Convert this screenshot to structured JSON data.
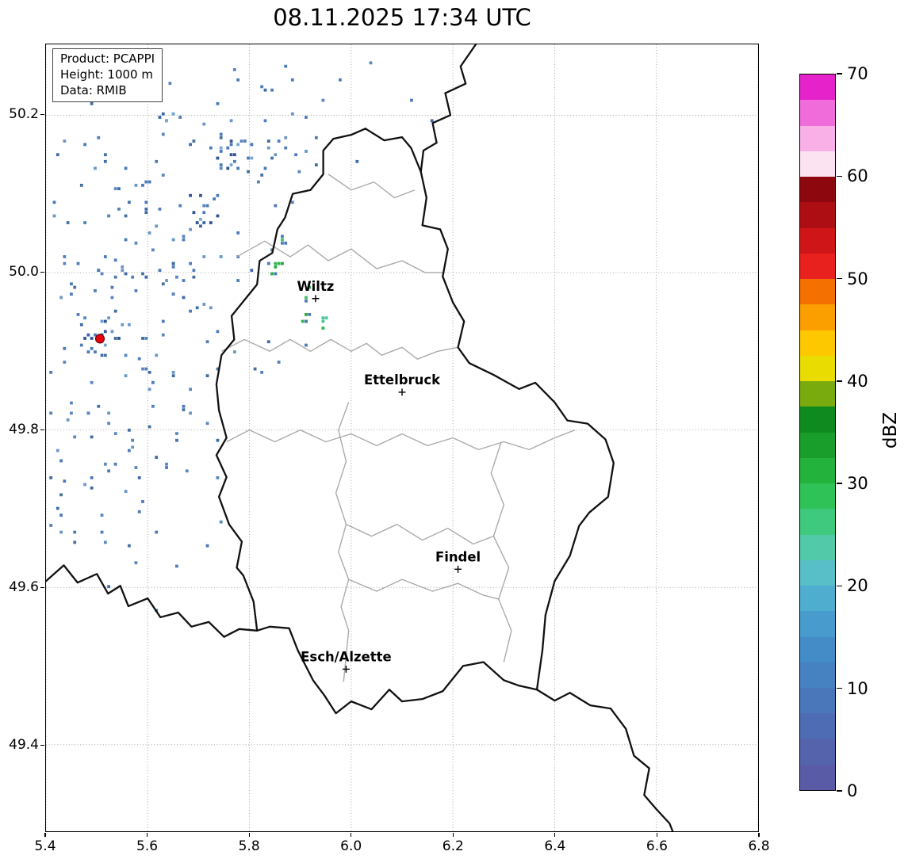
{
  "title": "08.11.2025 17:34 UTC",
  "info_box": {
    "lines": [
      "Product: PCAPPI",
      "Height: 1000 m",
      "Data: RMIB"
    ]
  },
  "colorbar": {
    "label": "dBZ",
    "min": 0,
    "max": 70,
    "ticks": [
      0,
      10,
      20,
      30,
      40,
      50,
      60,
      70
    ],
    "colors": [
      "#5a5ba6",
      "#5463ac",
      "#4e6cb3",
      "#4a76ba",
      "#4681c1",
      "#438cc8",
      "#479ccd",
      "#4fadd0",
      "#58bfc8",
      "#52c9a8",
      "#3fc97e",
      "#2fc256",
      "#23b23c",
      "#199e2b",
      "#0f8a1e",
      "#7aab0e",
      "#e8dc00",
      "#fdc800",
      "#fb9e00",
      "#f47000",
      "#e8201e",
      "#cf1518",
      "#ad0e13",
      "#8c070e",
      "#fbe3f2",
      "#f8b0e6",
      "#f06cda",
      "#e623cb"
    ]
  },
  "chart_data": {
    "type": "heatmap",
    "title": "08.11.2025 17:34 UTC",
    "x_range": [
      5.4,
      6.8
    ],
    "y_range": [
      49.29,
      50.29
    ],
    "x_ticks": [
      5.4,
      5.6,
      5.8,
      6.0,
      6.2,
      6.4,
      6.6,
      6.8
    ],
    "y_ticks": [
      49.4,
      49.6,
      49.8,
      50.0,
      50.2
    ],
    "grid": true,
    "value_units": "dBZ",
    "cities": [
      {
        "name": "Wiltz",
        "lon": 5.93,
        "lat": 49.967
      },
      {
        "name": "Ettelbruck",
        "lon": 6.1,
        "lat": 49.848
      },
      {
        "name": "Findel",
        "lon": 6.21,
        "lat": 49.623
      },
      {
        "name": "Esch/Alzette",
        "lon": 5.99,
        "lat": 49.496
      }
    ],
    "city_marker": "plus",
    "radar_site": {
      "lon": 5.506,
      "lat": 49.916,
      "color": "#e8000b"
    },
    "echo_palettes": {
      "blue": [
        "#4d7ab8",
        "#4d7ab8",
        "#527ebb",
        "#3f6ba6",
        "#6b96c8",
        "#44719f",
        "#5a87c0"
      ],
      "dense": [
        "#2f5591",
        "#3a67a5",
        "#4d7ab8",
        "#4d7ab8",
        "#79a8d2",
        "#2f5591"
      ],
      "green": [
        "#2eb44a",
        "#27a83f",
        "#3cc457",
        "#4d7ab8",
        "#2eb44a"
      ],
      "teal": [
        "#45c98f",
        "#2eb44a",
        "#52c9a8"
      ]
    },
    "echo_clusters": [
      {
        "palette": "blue",
        "lon": 5.56,
        "lat": 50.04,
        "dlon": 0.1,
        "dlat": 0.1,
        "n": 85
      },
      {
        "palette": "blue",
        "lon": 5.52,
        "lat": 49.86,
        "dlon": 0.08,
        "dlat": 0.09,
        "n": 55
      },
      {
        "palette": "blue",
        "lon": 5.7,
        "lat": 49.96,
        "dlon": 0.09,
        "dlat": 0.12,
        "n": 45
      },
      {
        "palette": "blue",
        "lon": 5.62,
        "lat": 49.7,
        "dlon": 0.09,
        "dlat": 0.07,
        "n": 22
      },
      {
        "palette": "blue",
        "lon": 5.86,
        "lat": 50.13,
        "dlon": 0.08,
        "dlat": 0.06,
        "n": 22
      },
      {
        "palette": "blue",
        "lon": 6.02,
        "lat": 50.21,
        "dlon": 0.09,
        "dlat": 0.05,
        "n": 9
      },
      {
        "palette": "blue",
        "lon": 5.45,
        "lat": 49.7,
        "dlon": 0.035,
        "dlat": 0.05,
        "n": 10
      },
      {
        "palette": "blue",
        "lon": 5.75,
        "lat": 50.22,
        "dlon": 0.06,
        "dlat": 0.04,
        "n": 10
      },
      {
        "palette": "dense",
        "lon": 5.767,
        "lat": 50.148,
        "dlon": 0.018,
        "dlat": 0.014,
        "n": 16
      },
      {
        "palette": "dense",
        "lon": 5.713,
        "lat": 50.073,
        "dlon": 0.015,
        "dlat": 0.012,
        "n": 12
      },
      {
        "palette": "dense",
        "lon": 5.633,
        "lat": 50.195,
        "dlon": 0.012,
        "dlat": 0.008,
        "n": 6
      },
      {
        "palette": "dense",
        "lon": 5.498,
        "lat": 49.915,
        "dlon": 0.02,
        "dlat": 0.012,
        "n": 14
      },
      {
        "palette": "green",
        "lon": 5.851,
        "lat": 50.005,
        "dlon": 0.008,
        "dlat": 0.007,
        "n": 8
      },
      {
        "palette": "green",
        "lon": 5.912,
        "lat": 49.947,
        "dlon": 0.005,
        "dlat": 0.018,
        "n": 9
      },
      {
        "palette": "teal",
        "lon": 5.945,
        "lat": 49.938,
        "dlon": 0.005,
        "dlat": 0.005,
        "n": 4
      },
      {
        "palette": "green",
        "lon": 5.863,
        "lat": 50.042,
        "dlon": 0.004,
        "dlat": 0.004,
        "n": 3
      }
    ],
    "borders": {
      "country_color": "#111111",
      "region_color": "#aaaaaa",
      "country_lines": [
        [
          [
            6.028,
            50.183
          ],
          [
            6.065,
            50.168
          ],
          [
            6.1,
            50.172
          ],
          [
            6.118,
            50.158
          ],
          [
            6.137,
            50.128
          ],
          [
            6.148,
            50.095
          ],
          [
            6.14,
            50.06
          ],
          [
            6.175,
            50.055
          ],
          [
            6.19,
            50.03
          ],
          [
            6.18,
            49.995
          ],
          [
            6.2,
            49.962
          ],
          [
            6.222,
            49.938
          ],
          [
            6.21,
            49.905
          ],
          [
            6.232,
            49.885
          ],
          [
            6.28,
            49.87
          ],
          [
            6.33,
            49.852
          ],
          [
            6.362,
            49.86
          ],
          [
            6.4,
            49.835
          ],
          [
            6.425,
            49.812
          ],
          [
            6.465,
            49.808
          ],
          [
            6.5,
            49.788
          ],
          [
            6.516,
            49.758
          ],
          [
            6.505,
            49.715
          ],
          [
            6.468,
            49.695
          ],
          [
            6.448,
            49.678
          ],
          [
            6.43,
            49.64
          ],
          [
            6.4,
            49.608
          ],
          [
            6.382,
            49.565
          ],
          [
            6.376,
            49.52
          ],
          [
            6.365,
            49.47
          ],
          [
            6.33,
            49.475
          ],
          [
            6.3,
            49.482
          ],
          [
            6.26,
            49.505
          ],
          [
            6.22,
            49.5
          ],
          [
            6.18,
            49.468
          ],
          [
            6.14,
            49.458
          ],
          [
            6.1,
            49.455
          ],
          [
            6.075,
            49.47
          ],
          [
            6.04,
            49.445
          ],
          [
            6.0,
            49.455
          ],
          [
            5.97,
            49.44
          ],
          [
            5.948,
            49.462
          ],
          [
            5.925,
            49.482
          ],
          [
            5.895,
            49.52
          ],
          [
            5.878,
            49.548
          ],
          [
            5.84,
            49.55
          ],
          [
            5.815,
            49.545
          ],
          [
            5.808,
            49.582
          ],
          [
            5.788,
            49.615
          ],
          [
            5.775,
            49.625
          ],
          [
            5.785,
            49.658
          ],
          [
            5.76,
            49.68
          ],
          [
            5.74,
            49.715
          ],
          [
            5.755,
            49.74
          ],
          [
            5.735,
            49.768
          ],
          [
            5.755,
            49.79
          ],
          [
            5.74,
            49.825
          ],
          [
            5.735,
            49.858
          ],
          [
            5.745,
            49.895
          ],
          [
            5.77,
            49.915
          ],
          [
            5.765,
            49.945
          ],
          [
            5.79,
            49.965
          ],
          [
            5.815,
            49.985
          ],
          [
            5.82,
            50.015
          ],
          [
            5.845,
            50.025
          ],
          [
            5.855,
            50.055
          ],
          [
            5.87,
            50.07
          ],
          [
            5.885,
            50.1
          ],
          [
            5.92,
            50.105
          ],
          [
            5.945,
            50.125
          ],
          [
            5.945,
            50.155
          ],
          [
            5.965,
            50.17
          ],
          [
            6.0,
            50.175
          ],
          [
            6.028,
            50.183
          ]
        ],
        [
          [
            6.245,
            50.29
          ],
          [
            6.215,
            50.262
          ],
          [
            6.225,
            50.24
          ],
          [
            6.185,
            50.228
          ],
          [
            6.195,
            50.2
          ],
          [
            6.16,
            50.19
          ],
          [
            6.168,
            50.165
          ],
          [
            6.142,
            50.155
          ],
          [
            6.137,
            50.128
          ]
        ],
        [
          [
            5.4,
            49.608
          ],
          [
            5.435,
            49.628
          ],
          [
            5.462,
            49.606
          ],
          [
            5.5,
            49.617
          ],
          [
            5.522,
            49.592
          ],
          [
            5.546,
            49.602
          ],
          [
            5.562,
            49.576
          ],
          [
            5.6,
            49.586
          ],
          [
            5.625,
            49.562
          ],
          [
            5.66,
            49.568
          ],
          [
            5.686,
            49.55
          ],
          [
            5.72,
            49.556
          ],
          [
            5.75,
            49.537
          ],
          [
            5.78,
            49.547
          ],
          [
            5.815,
            49.545
          ]
        ],
        [
          [
            6.365,
            49.47
          ],
          [
            6.4,
            49.456
          ],
          [
            6.43,
            49.466
          ],
          [
            6.47,
            49.45
          ],
          [
            6.51,
            49.446
          ],
          [
            6.54,
            49.42
          ],
          [
            6.556,
            49.386
          ],
          [
            6.586,
            49.37
          ],
          [
            6.576,
            49.336
          ],
          [
            6.6,
            49.318
          ],
          [
            6.626,
            49.3
          ],
          [
            6.632,
            49.29
          ]
        ]
      ],
      "region_lines": [
        [
          [
            5.775,
            50.02
          ],
          [
            5.83,
            50.04
          ],
          [
            5.88,
            50.02
          ],
          [
            5.915,
            50.035
          ],
          [
            5.955,
            50.015
          ],
          [
            6.0,
            50.03
          ],
          [
            6.05,
            50.005
          ],
          [
            6.1,
            50.015
          ],
          [
            6.145,
            50.0
          ],
          [
            6.18,
            50.0
          ]
        ],
        [
          [
            5.745,
            49.9
          ],
          [
            5.79,
            49.915
          ],
          [
            5.84,
            49.9
          ],
          [
            5.88,
            49.915
          ],
          [
            5.92,
            49.9
          ],
          [
            5.96,
            49.915
          ],
          [
            6.0,
            49.9
          ],
          [
            6.03,
            49.91
          ],
          [
            6.06,
            49.895
          ],
          [
            6.1,
            49.905
          ],
          [
            6.13,
            49.89
          ],
          [
            6.17,
            49.9
          ],
          [
            6.21,
            49.905
          ]
        ],
        [
          [
            5.755,
            49.785
          ],
          [
            5.8,
            49.8
          ],
          [
            5.85,
            49.785
          ],
          [
            5.9,
            49.8
          ],
          [
            5.95,
            49.785
          ],
          [
            6.0,
            49.795
          ],
          [
            6.05,
            49.78
          ],
          [
            6.1,
            49.795
          ],
          [
            6.15,
            49.78
          ],
          [
            6.2,
            49.79
          ],
          [
            6.25,
            49.775
          ],
          [
            6.3,
            49.785
          ],
          [
            6.35,
            49.775
          ],
          [
            6.4,
            49.79
          ],
          [
            6.44,
            49.8
          ]
        ],
        [
          [
            5.995,
            49.835
          ],
          [
            5.975,
            49.8
          ],
          [
            5.99,
            49.76
          ],
          [
            5.97,
            49.72
          ],
          [
            5.99,
            49.68
          ],
          [
            5.975,
            49.645
          ],
          [
            5.995,
            49.61
          ],
          [
            5.98,
            49.575
          ],
          [
            5.995,
            49.545
          ],
          [
            5.985,
            49.48
          ]
        ],
        [
          [
            6.295,
            49.785
          ],
          [
            6.275,
            49.745
          ],
          [
            6.3,
            49.705
          ],
          [
            6.28,
            49.665
          ],
          [
            6.31,
            49.625
          ],
          [
            6.29,
            49.585
          ],
          [
            6.315,
            49.545
          ],
          [
            6.3,
            49.505
          ]
        ],
        [
          [
            5.99,
            49.68
          ],
          [
            6.04,
            49.665
          ],
          [
            6.09,
            49.68
          ],
          [
            6.14,
            49.66
          ],
          [
            6.19,
            49.675
          ],
          [
            6.24,
            49.655
          ],
          [
            6.28,
            49.665
          ]
        ],
        [
          [
            5.995,
            49.61
          ],
          [
            6.05,
            49.595
          ],
          [
            6.1,
            49.61
          ],
          [
            6.16,
            49.595
          ],
          [
            6.21,
            49.605
          ],
          [
            6.26,
            49.59
          ],
          [
            6.29,
            49.585
          ]
        ],
        [
          [
            5.955,
            50.125
          ],
          [
            6.0,
            50.105
          ],
          [
            6.045,
            50.115
          ],
          [
            6.085,
            50.095
          ],
          [
            6.125,
            50.105
          ]
        ]
      ]
    }
  }
}
